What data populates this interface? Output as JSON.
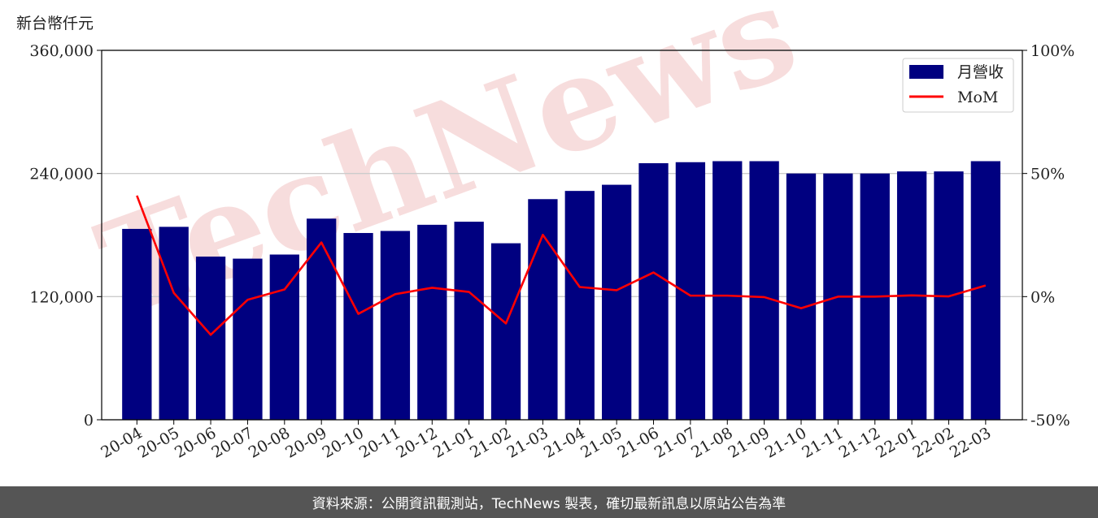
{
  "unit_label": "新台幣仟元",
  "footer": "資料來源：公開資訊觀測站，TechNews 製表，確切最新訊息以原站公告為準",
  "watermark": "TechNews",
  "colors": {
    "bar": "#000080",
    "line": "#ff0000",
    "grid": "#cccccc",
    "footer_bg": "#555555",
    "watermark": "#f3c8c8"
  },
  "chart_data": {
    "type": "bar",
    "categories": [
      "20-04",
      "20-05",
      "20-06",
      "20-07",
      "20-08",
      "20-09",
      "20-10",
      "20-11",
      "20-12",
      "21-01",
      "21-02",
      "21-03",
      "21-04",
      "21-05",
      "21-06",
      "21-07",
      "21-08",
      "21-09",
      "21-10",
      "21-11",
      "21-12",
      "22-01",
      "22-02",
      "22-03"
    ],
    "series": [
      {
        "name": "月營收",
        "type": "bar",
        "axis": "left",
        "values": [
          186000,
          188000,
          159000,
          157000,
          161000,
          196000,
          182000,
          184000,
          190000,
          193000,
          172000,
          215000,
          223000,
          229000,
          250000,
          251000,
          252000,
          252000,
          240000,
          240000,
          240000,
          242000,
          242000,
          252000
        ]
      },
      {
        "name": "MoM",
        "type": "line",
        "axis": "right",
        "values": [
          41,
          1.5,
          -15.5,
          -1.3,
          2.9,
          22,
          -7,
          1,
          3.6,
          1.9,
          -10.9,
          25.1,
          3.9,
          2.6,
          9.8,
          0.4,
          0.4,
          -0.2,
          -4.7,
          0,
          0,
          0.5,
          0.1,
          4.5
        ]
      }
    ],
    "y_left": {
      "range": [
        0,
        360000
      ],
      "ticks": [
        "0",
        "120,000",
        "240,000",
        "360,000"
      ],
      "tick_values": [
        0,
        120000,
        240000,
        360000
      ]
    },
    "y_right": {
      "range": [
        -50,
        100
      ],
      "ticks": [
        "-50%",
        "0%",
        "50%",
        "100%"
      ],
      "tick_values": [
        -50,
        0,
        50,
        100
      ]
    },
    "grid": "horizontal",
    "legend": "top-right"
  }
}
